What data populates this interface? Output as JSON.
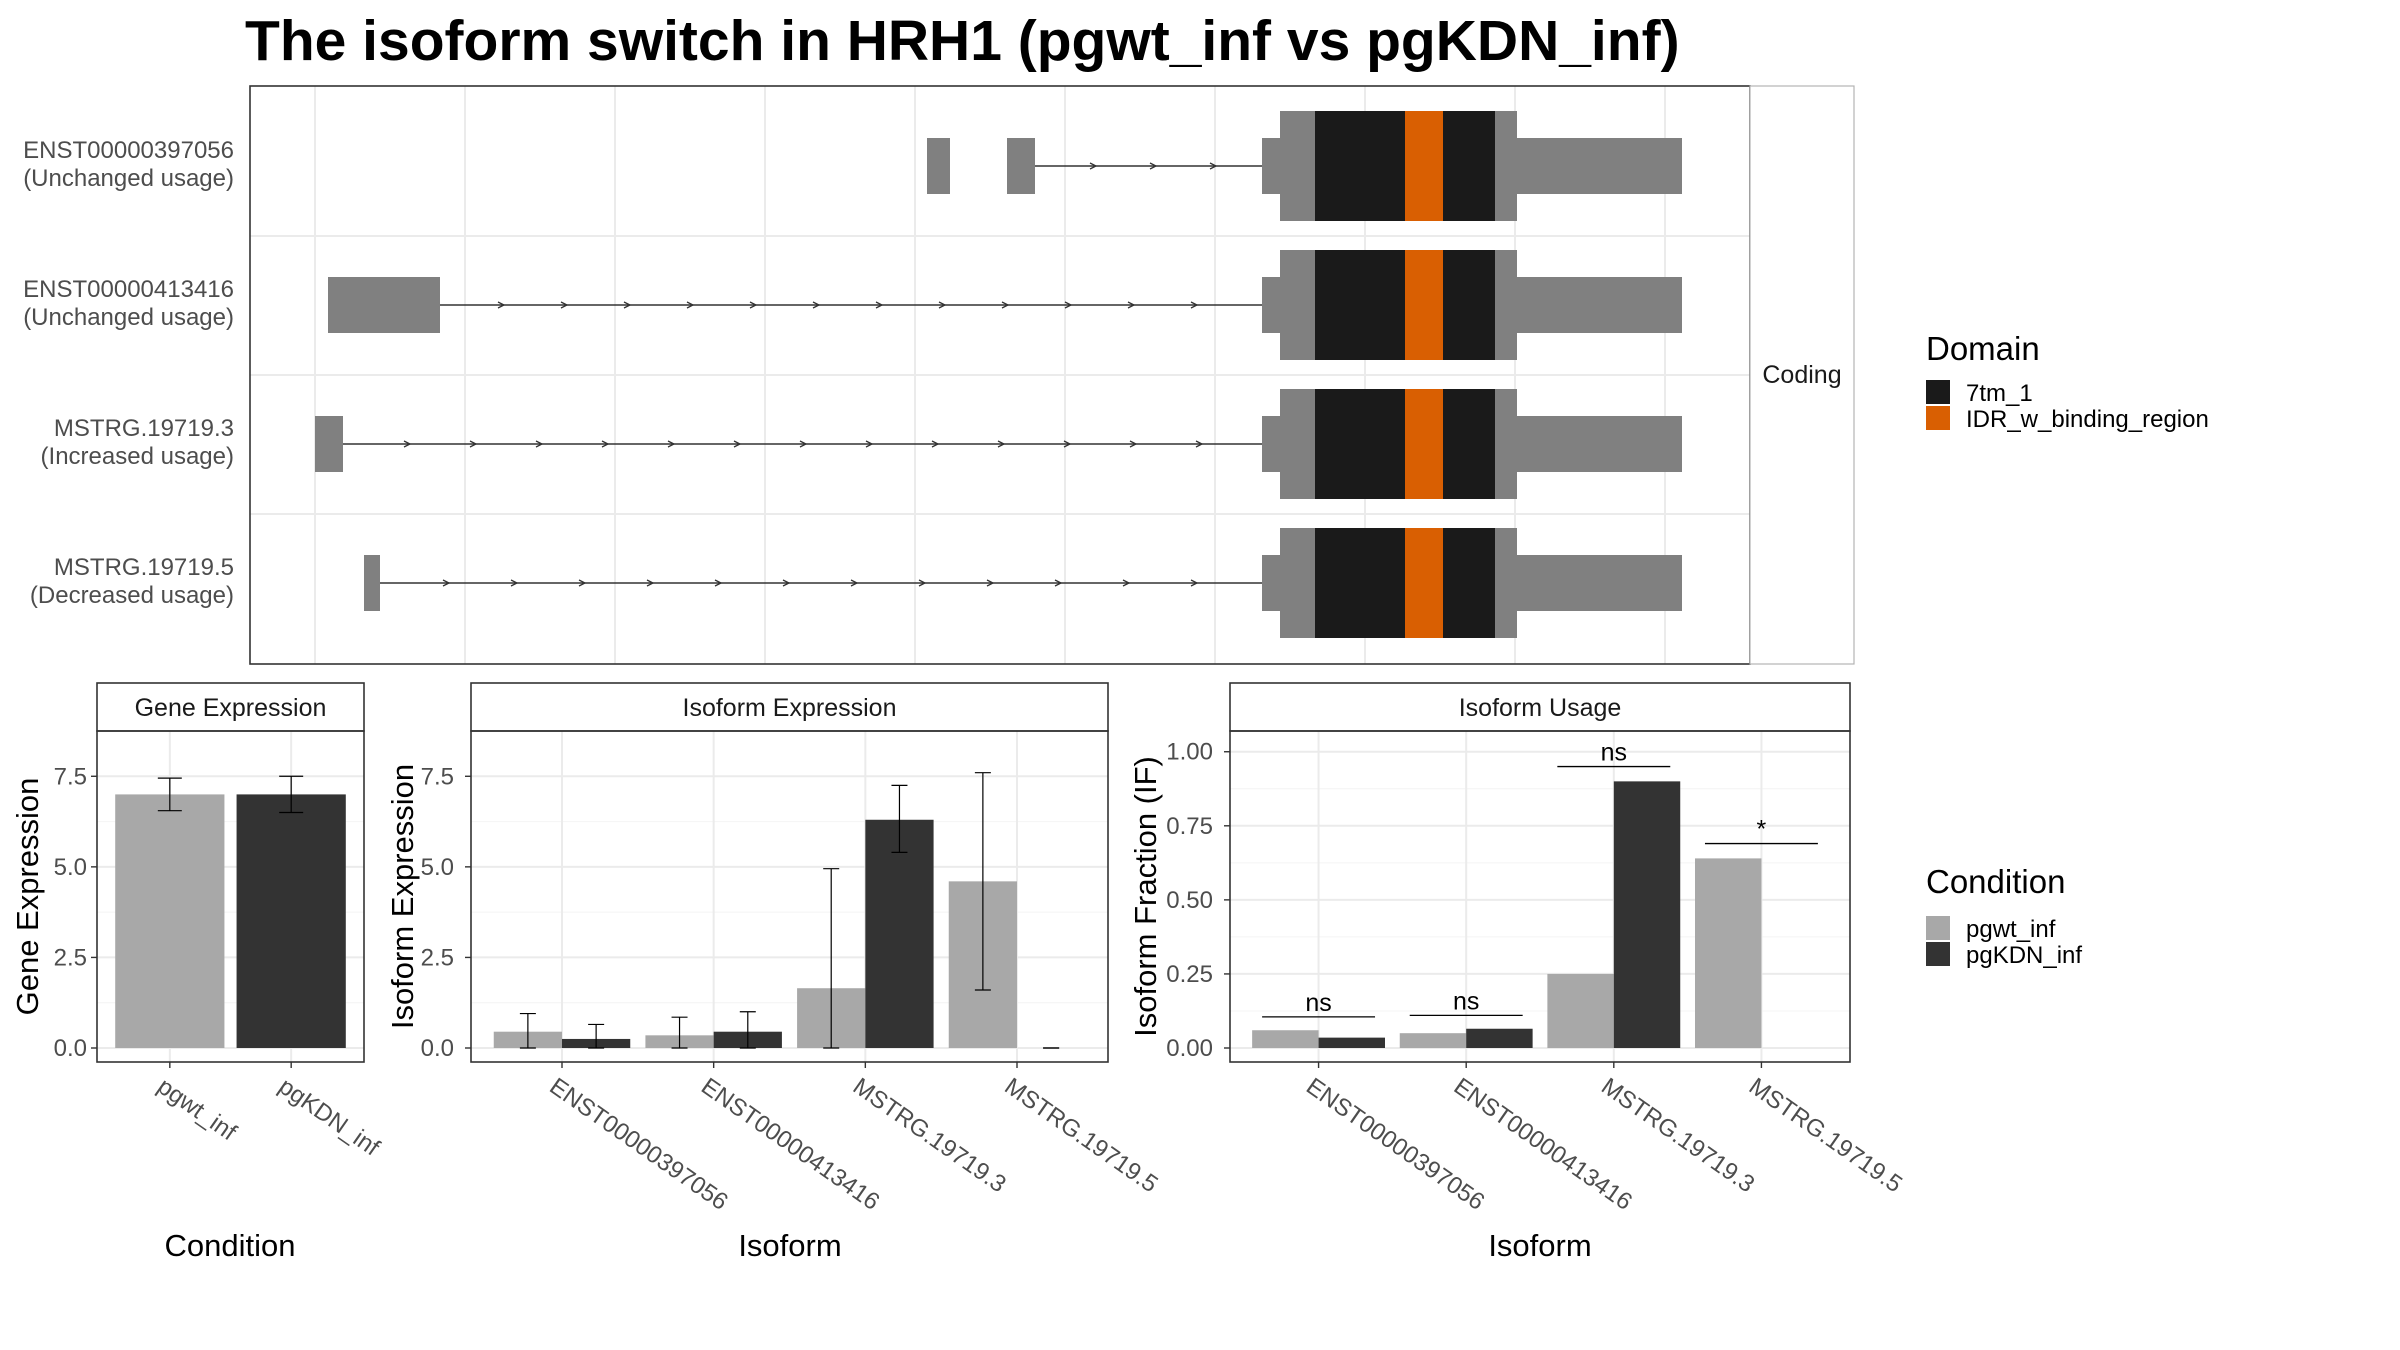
{
  "title": "The isoform switch in HRH1 (pgwt_inf vs pgKDN_inf)",
  "colors": {
    "utr": "#808080",
    "domain_7tm": "#1a1a1a",
    "domain_idr": "#d95f02",
    "cond_wt": "#a8a8a8",
    "cond_kdn": "#333333"
  },
  "structure": {
    "facet_label": "Coding",
    "isoforms": [
      {
        "name": "ENST00000397056",
        "usage": "(Unchanged usage)"
      },
      {
        "name": "ENST00000413416",
        "usage": "(Unchanged usage)"
      },
      {
        "name": "MSTRG.19719.3",
        "usage": "(Increased usage)"
      },
      {
        "name": "MSTRG.19719.5",
        "usage": "(Decreased usage)"
      }
    ]
  },
  "legend_domain": {
    "title": "Domain",
    "items": [
      {
        "label": "7tm_1",
        "color": "#1a1a1a"
      },
      {
        "label": "IDR_w_binding_region",
        "color": "#d95f02"
      }
    ]
  },
  "legend_condition": {
    "title": "Condition",
    "items": [
      {
        "label": "pgwt_inf",
        "color": "#a8a8a8"
      },
      {
        "label": "pgKDN_inf",
        "color": "#333333"
      }
    ]
  },
  "chart_data": [
    {
      "type": "bar",
      "strip": "Gene Expression",
      "xlabel": "Condition",
      "ylabel": "Gene Expression",
      "ylim": [
        0,
        8.75
      ],
      "yticks": [
        "0.0",
        "2.5",
        "5.0",
        "7.5"
      ],
      "categories": [
        "pgwt_inf",
        "pgKDN_inf"
      ],
      "values": [
        7.0,
        7.0
      ],
      "error_low": [
        6.55,
        6.5
      ],
      "error_high": [
        7.45,
        7.5
      ]
    },
    {
      "type": "bar",
      "strip": "Isoform Expression",
      "xlabel": "Isoform",
      "ylabel": "Isoform Expression",
      "ylim": [
        0,
        8.75
      ],
      "yticks": [
        "0.0",
        "2.5",
        "5.0",
        "7.5"
      ],
      "categories": [
        "ENST00000397056",
        "ENST00000413416",
        "MSTRG.19719.3",
        "MSTRG.19719.5"
      ],
      "series": [
        {
          "name": "pgwt_inf",
          "values": [
            0.45,
            0.35,
            1.65,
            4.6
          ],
          "error_low": [
            0.0,
            0.0,
            0.0,
            1.6
          ],
          "error_high": [
            0.95,
            0.85,
            4.95,
            7.6
          ]
        },
        {
          "name": "pgKDN_inf",
          "values": [
            0.25,
            0.45,
            6.3,
            0.0
          ],
          "error_low": [
            0.0,
            0.0,
            5.4,
            0.0
          ],
          "error_high": [
            0.65,
            1.0,
            7.25,
            0.0
          ]
        }
      ]
    },
    {
      "type": "bar",
      "strip": "Isoform Usage",
      "xlabel": "Isoform",
      "ylabel": "Isoform Fraction (IF)",
      "ylim": [
        0,
        1.07
      ],
      "yticks": [
        "0.00",
        "0.25",
        "0.50",
        "0.75",
        "1.00"
      ],
      "categories": [
        "ENST00000397056",
        "ENST00000413416",
        "MSTRG.19719.3",
        "MSTRG.19719.5"
      ],
      "series": [
        {
          "name": "pgwt_inf",
          "values": [
            0.06,
            0.05,
            0.25,
            0.64
          ]
        },
        {
          "name": "pgKDN_inf",
          "values": [
            0.035,
            0.065,
            0.9,
            0.0
          ]
        }
      ],
      "significance": [
        {
          "label": "ns",
          "y": 0.105
        },
        {
          "label": "ns",
          "y": 0.11
        },
        {
          "label": "ns",
          "y": 0.95
        },
        {
          "label": "*",
          "y": 0.69
        }
      ]
    }
  ]
}
